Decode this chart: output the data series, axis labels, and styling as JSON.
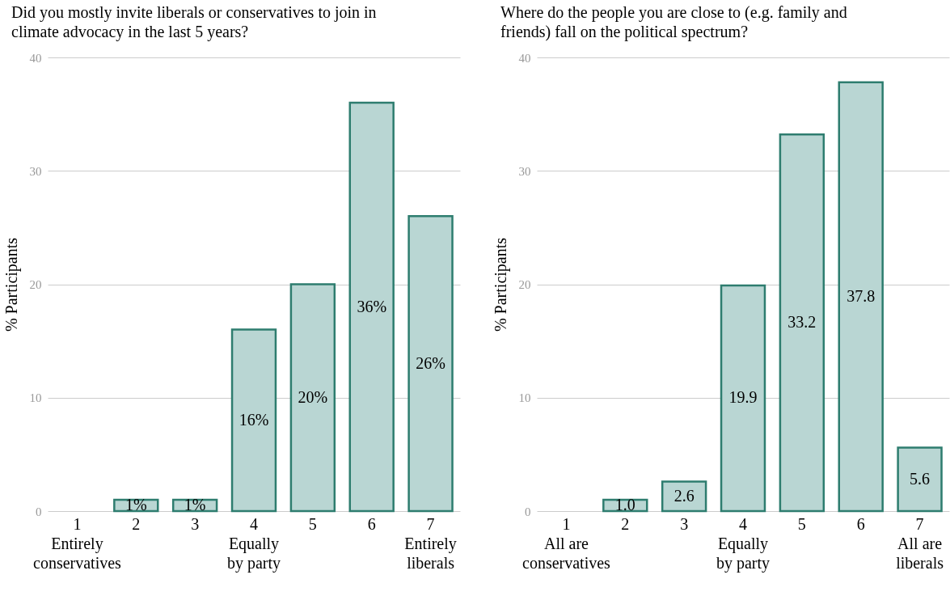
{
  "chart_data": [
    {
      "type": "bar",
      "title": "Did you mostly invite liberals or conservatives to join in climate advocacy in the last 5 years?",
      "ylabel": "% Participants",
      "categories": [
        "1\nEntirely\nconservatives",
        "2",
        "3",
        "4\nEqually\nby party",
        "5",
        "6",
        "7\nEntirely\nliberals"
      ],
      "series": [
        {
          "color": "#b9d6d3",
          "values": [
            0,
            1,
            1,
            16,
            20,
            36,
            26
          ],
          "value_labels": [
            null,
            "1%",
            "1%",
            "16%",
            "20%",
            "36%",
            "26%"
          ]
        }
      ],
      "ylim": [
        0,
        40
      ],
      "yticks": [
        0,
        10,
        20,
        30,
        40
      ],
      "grid": "y"
    },
    {
      "type": "bar",
      "title": "Where do the people you are close to (e.g. family and friends) fall on the political spectrum?",
      "ylabel": "% Participants",
      "categories": [
        "1\nAll are\nconservatives",
        "2",
        "3",
        "4\nEqually\nby party",
        "5",
        "6",
        "7\nAll are\nliberals"
      ],
      "series": [
        {
          "color": "#b9d6d3",
          "values": [
            0,
            1.0,
            2.6,
            19.9,
            33.2,
            37.8,
            5.6
          ],
          "value_labels": [
            null,
            "1.0",
            "2.6",
            "19.9",
            "33.2",
            "37.8",
            "5.6"
          ]
        }
      ],
      "ylim": [
        0,
        40
      ],
      "yticks": [
        0,
        10,
        20,
        30,
        40
      ],
      "grid": "y"
    }
  ]
}
